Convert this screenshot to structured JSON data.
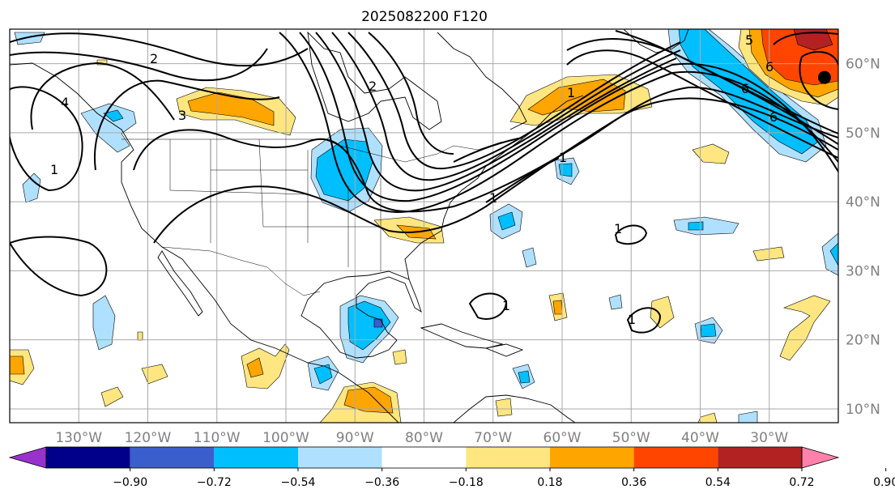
{
  "title": "2025082200 F120",
  "map": {
    "lon_range": [
      -140,
      -20
    ],
    "lat_range": [
      8,
      65
    ],
    "grid_lon": [
      -130,
      -120,
      -110,
      -100,
      -90,
      -80,
      -70,
      -60,
      -50,
      -40,
      -30
    ],
    "grid_lat": [
      10,
      20,
      30,
      40,
      50,
      60
    ],
    "lon_labels": [
      "130°W",
      "120°W",
      "110°W",
      "100°W",
      "90°W",
      "80°W",
      "70°W",
      "60°W",
      "50°W",
      "40°W",
      "30°W"
    ],
    "lat_labels": [
      "10°N",
      "20°N",
      "30°N",
      "40°N",
      "50°N",
      "60°N"
    ],
    "contour_labels": [
      "1",
      "1",
      "1",
      "1",
      "1",
      "1",
      "1",
      "2",
      "2",
      "3",
      "4",
      "5",
      "6",
      "6",
      "6"
    ],
    "marker": {
      "name": "black-dot",
      "lon": -22,
      "lat": 58
    }
  },
  "colorbar": {
    "ticks": [
      "−0.90",
      "−0.72",
      "−0.54",
      "−0.36",
      "−0.18",
      "0.18",
      "0.36",
      "0.54",
      "0.72",
      "0.90"
    ],
    "colors": [
      "#9932cc",
      "#00008b",
      "#3a5fcd",
      "#00bfff",
      "#b0e0ff",
      "#ffffff",
      "#ffe680",
      "#ffa500",
      "#ff4500",
      "#b22222",
      "#ff82ab"
    ]
  },
  "colors": {
    "neg_strong": "#3a5fcd",
    "neg_mid": "#00bfff",
    "neg_weak": "#b0e0ff",
    "pos_weak": "#ffe680",
    "pos_mid": "#ffa500",
    "pos_strong": "#ff4500",
    "pos_stronger": "#b22222"
  }
}
